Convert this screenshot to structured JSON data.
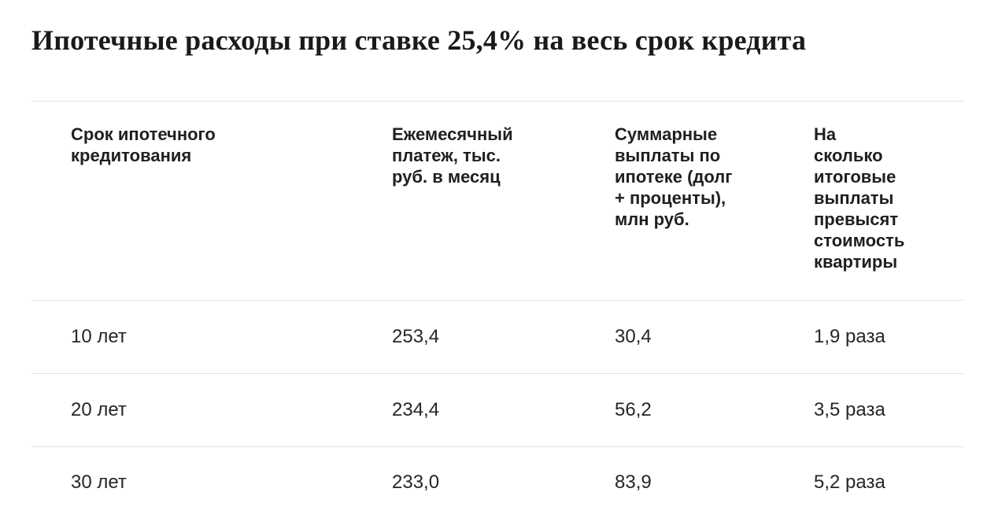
{
  "chart_data": {
    "type": "table",
    "title": "Ипотечные расходы при ставке 25,4% на весь срок кредита",
    "columns": [
      "Срок ипотечного кредитования",
      "Ежемесячный платеж, тыс. руб. в месяц",
      "Суммарные выплаты по ипотеке (долг + проценты), млн руб.",
      "На сколько итоговые выплаты превысят стоимость квартиры"
    ],
    "rows": [
      [
        "10 лет",
        "253,4",
        "30,4",
        "1,9 раза"
      ],
      [
        "20 лет",
        "234,4",
        "56,2",
        "3,5 раза"
      ],
      [
        "30 лет",
        "233,0",
        "83,9",
        "5,2 раза"
      ]
    ],
    "notes": {
      "interest_rate": "25,4%",
      "units": {
        "monthly_payment": "тыс. руб. в месяц",
        "total_payments": "млн руб."
      }
    }
  },
  "colors": {
    "background": "#ffffff",
    "title_text": "#1a1a1a",
    "header_text": "#1f1f1f",
    "cell_text": "#262626",
    "divider": "#e2e2e2"
  }
}
